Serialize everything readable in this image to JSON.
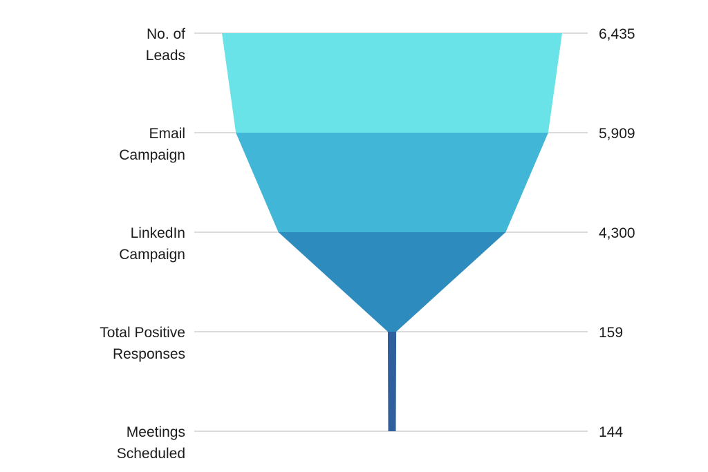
{
  "chart_data": {
    "type": "funnel",
    "title": "",
    "stages": [
      {
        "label_lines": [
          "No. of",
          "Leads"
        ],
        "value": 6435,
        "value_label": "6,435",
        "color": "#6ae3e8"
      },
      {
        "label_lines": [
          "Email",
          "Campaign"
        ],
        "value": 5909,
        "value_label": "5,909",
        "color": "#42b6d6"
      },
      {
        "label_lines": [
          "LinkedIn",
          "Campaign"
        ],
        "value": 4300,
        "value_label": "4,300",
        "color": "#2e8bbd"
      },
      {
        "label_lines": [
          "Total Positive",
          "Responses"
        ],
        "value": 159,
        "value_label": "159",
        "color": "#2f5f9c"
      },
      {
        "label_lines": [
          "Meetings",
          "Scheduled"
        ],
        "value": 144,
        "value_label": "144",
        "color": "#2f5f9c"
      }
    ]
  }
}
